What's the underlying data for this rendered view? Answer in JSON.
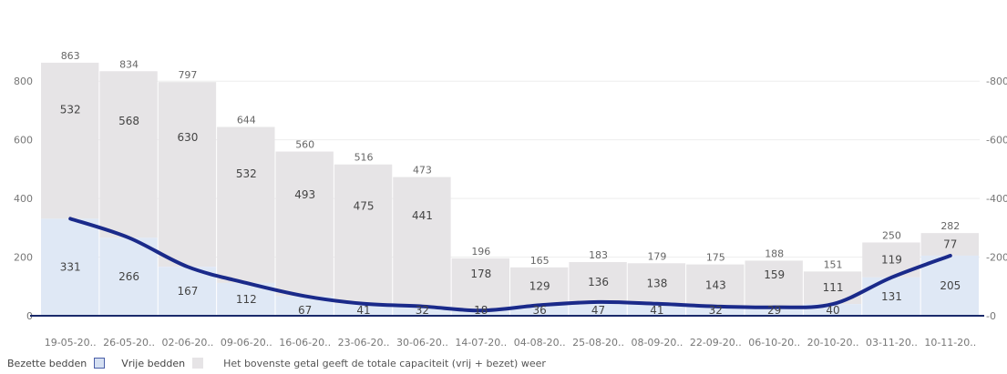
{
  "chart_data": {
    "type": "bar",
    "categories": [
      "19-05-20..",
      "26-05-20..",
      "02-06-20..",
      "09-06-20..",
      "16-06-20..",
      "23-06-20..",
      "30-06-20..",
      "14-07-20..",
      "04-08-20..",
      "25-08-20..",
      "08-09-20..",
      "22-09-20..",
      "06-10-20..",
      "20-10-20..",
      "03-11-20..",
      "10-11-20.."
    ],
    "series": [
      {
        "name": "Bezette bedden",
        "values": [
          331,
          266,
          167,
          112,
          67,
          41,
          32,
          18,
          36,
          47,
          41,
          32,
          29,
          40,
          131,
          205
        ]
      },
      {
        "name": "Vrije bedden",
        "values": [
          532,
          568,
          630,
          532,
          493,
          475,
          441,
          178,
          129,
          136,
          138,
          143,
          159,
          111,
          119,
          77
        ]
      }
    ],
    "totals": [
      863,
      834,
      797,
      644,
      560,
      516,
      473,
      196,
      165,
      183,
      179,
      175,
      188,
      151,
      250,
      282
    ],
    "ylim": [
      0,
      900
    ],
    "yticks": [
      0,
      200,
      400,
      600,
      800
    ],
    "grid": true,
    "colors": {
      "free_bar": "#e6e4e6",
      "occupied_area": "#dfe8f5",
      "line": "#1a2a8a",
      "axis": "#1a2a6a",
      "grid": "#eeeeee",
      "tick_text": "#777777",
      "label_text": "#444444",
      "total_text": "#666666"
    }
  },
  "legend": {
    "occupied": "Bezette bedden",
    "free": "Vrije bedden",
    "note": "Het bovenste getal geeft de totale capaciteit (vrij + bezet) weer"
  }
}
